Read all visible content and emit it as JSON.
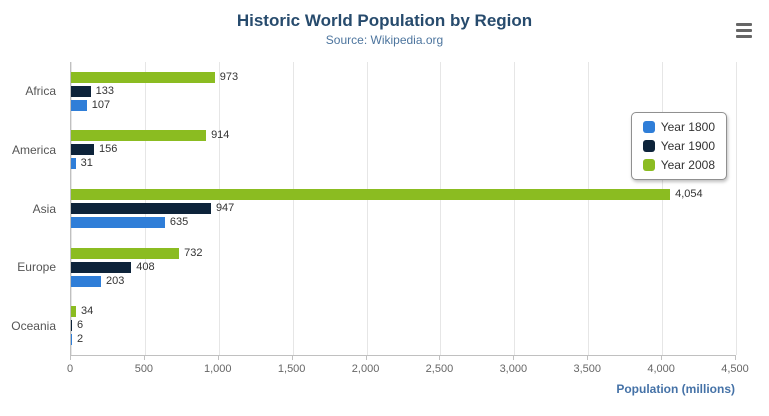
{
  "chart_data": {
    "type": "bar",
    "orientation": "horizontal",
    "title": "Historic World Population by Region",
    "subtitle": "Source: Wikipedia.org",
    "categories": [
      "Africa",
      "America",
      "Asia",
      "Europe",
      "Oceania"
    ],
    "series": [
      {
        "name": "Year 1800",
        "color": "#2f7ed8",
        "values": [
          107,
          31,
          635,
          203,
          2
        ],
        "labels": [
          "107",
          "31",
          "635",
          "203",
          "2"
        ]
      },
      {
        "name": "Year 1900",
        "color": "#0d233a",
        "values": [
          133,
          156,
          947,
          408,
          6
        ],
        "labels": [
          "133",
          "156",
          "947",
          "408",
          "6"
        ]
      },
      {
        "name": "Year 2008",
        "color": "#8bbc21",
        "values": [
          973,
          914,
          4054,
          732,
          34
        ],
        "labels": [
          "973",
          "914",
          "4,054",
          "732",
          "34"
        ]
      }
    ],
    "bar_display_order_top_to_bottom": [
      "Year 2008",
      "Year 1900",
      "Year 1800"
    ],
    "xlabel": "Population (millions)",
    "xlim": [
      0,
      4500
    ],
    "xticks": {
      "values": [
        0,
        500,
        1000,
        1500,
        2000,
        2500,
        3000,
        3500,
        4000,
        4500
      ],
      "labels": [
        "0",
        "500",
        "1,000",
        "1,500",
        "2,000",
        "2,500",
        "3,000",
        "3,500",
        "4,000",
        "4,500"
      ]
    },
    "grid": true,
    "legend_position": "right"
  },
  "colors": {
    "title": "#274b6d",
    "subtitle": "#4d759e",
    "axis_title": "#4572a7",
    "value_label": "#333333",
    "tick_label": "#666666",
    "category_label": "#555555",
    "gridline": "#e6e6e6",
    "axis_line": "#c0c0c0",
    "legend_border": "#909090"
  },
  "menu": {
    "icon": "hamburger-export-menu"
  }
}
